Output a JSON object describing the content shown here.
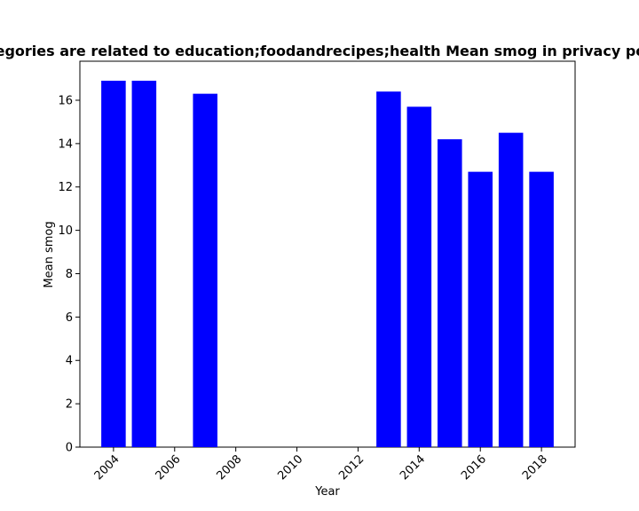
{
  "chart_data": {
    "type": "bar",
    "title": "Categories are related to education;foodandrecipes;health Mean smog in privacy policies",
    "xlabel": "Year",
    "ylabel": "Mean smog",
    "x": [
      2004,
      2005,
      2007,
      2013,
      2014,
      2015,
      2016,
      2017,
      2018
    ],
    "values": [
      16.9,
      16.9,
      16.3,
      16.4,
      15.7,
      14.2,
      12.7,
      14.5,
      12.7
    ],
    "xlim": [
      2002.9,
      2019.1
    ],
    "ylim": [
      0,
      17.8
    ],
    "xticks": [
      2004,
      2006,
      2008,
      2010,
      2012,
      2014,
      2016,
      2018
    ],
    "yticks": [
      0,
      2,
      4,
      6,
      8,
      10,
      12,
      14,
      16
    ],
    "bar_color": "#0000ff",
    "grid": false
  }
}
